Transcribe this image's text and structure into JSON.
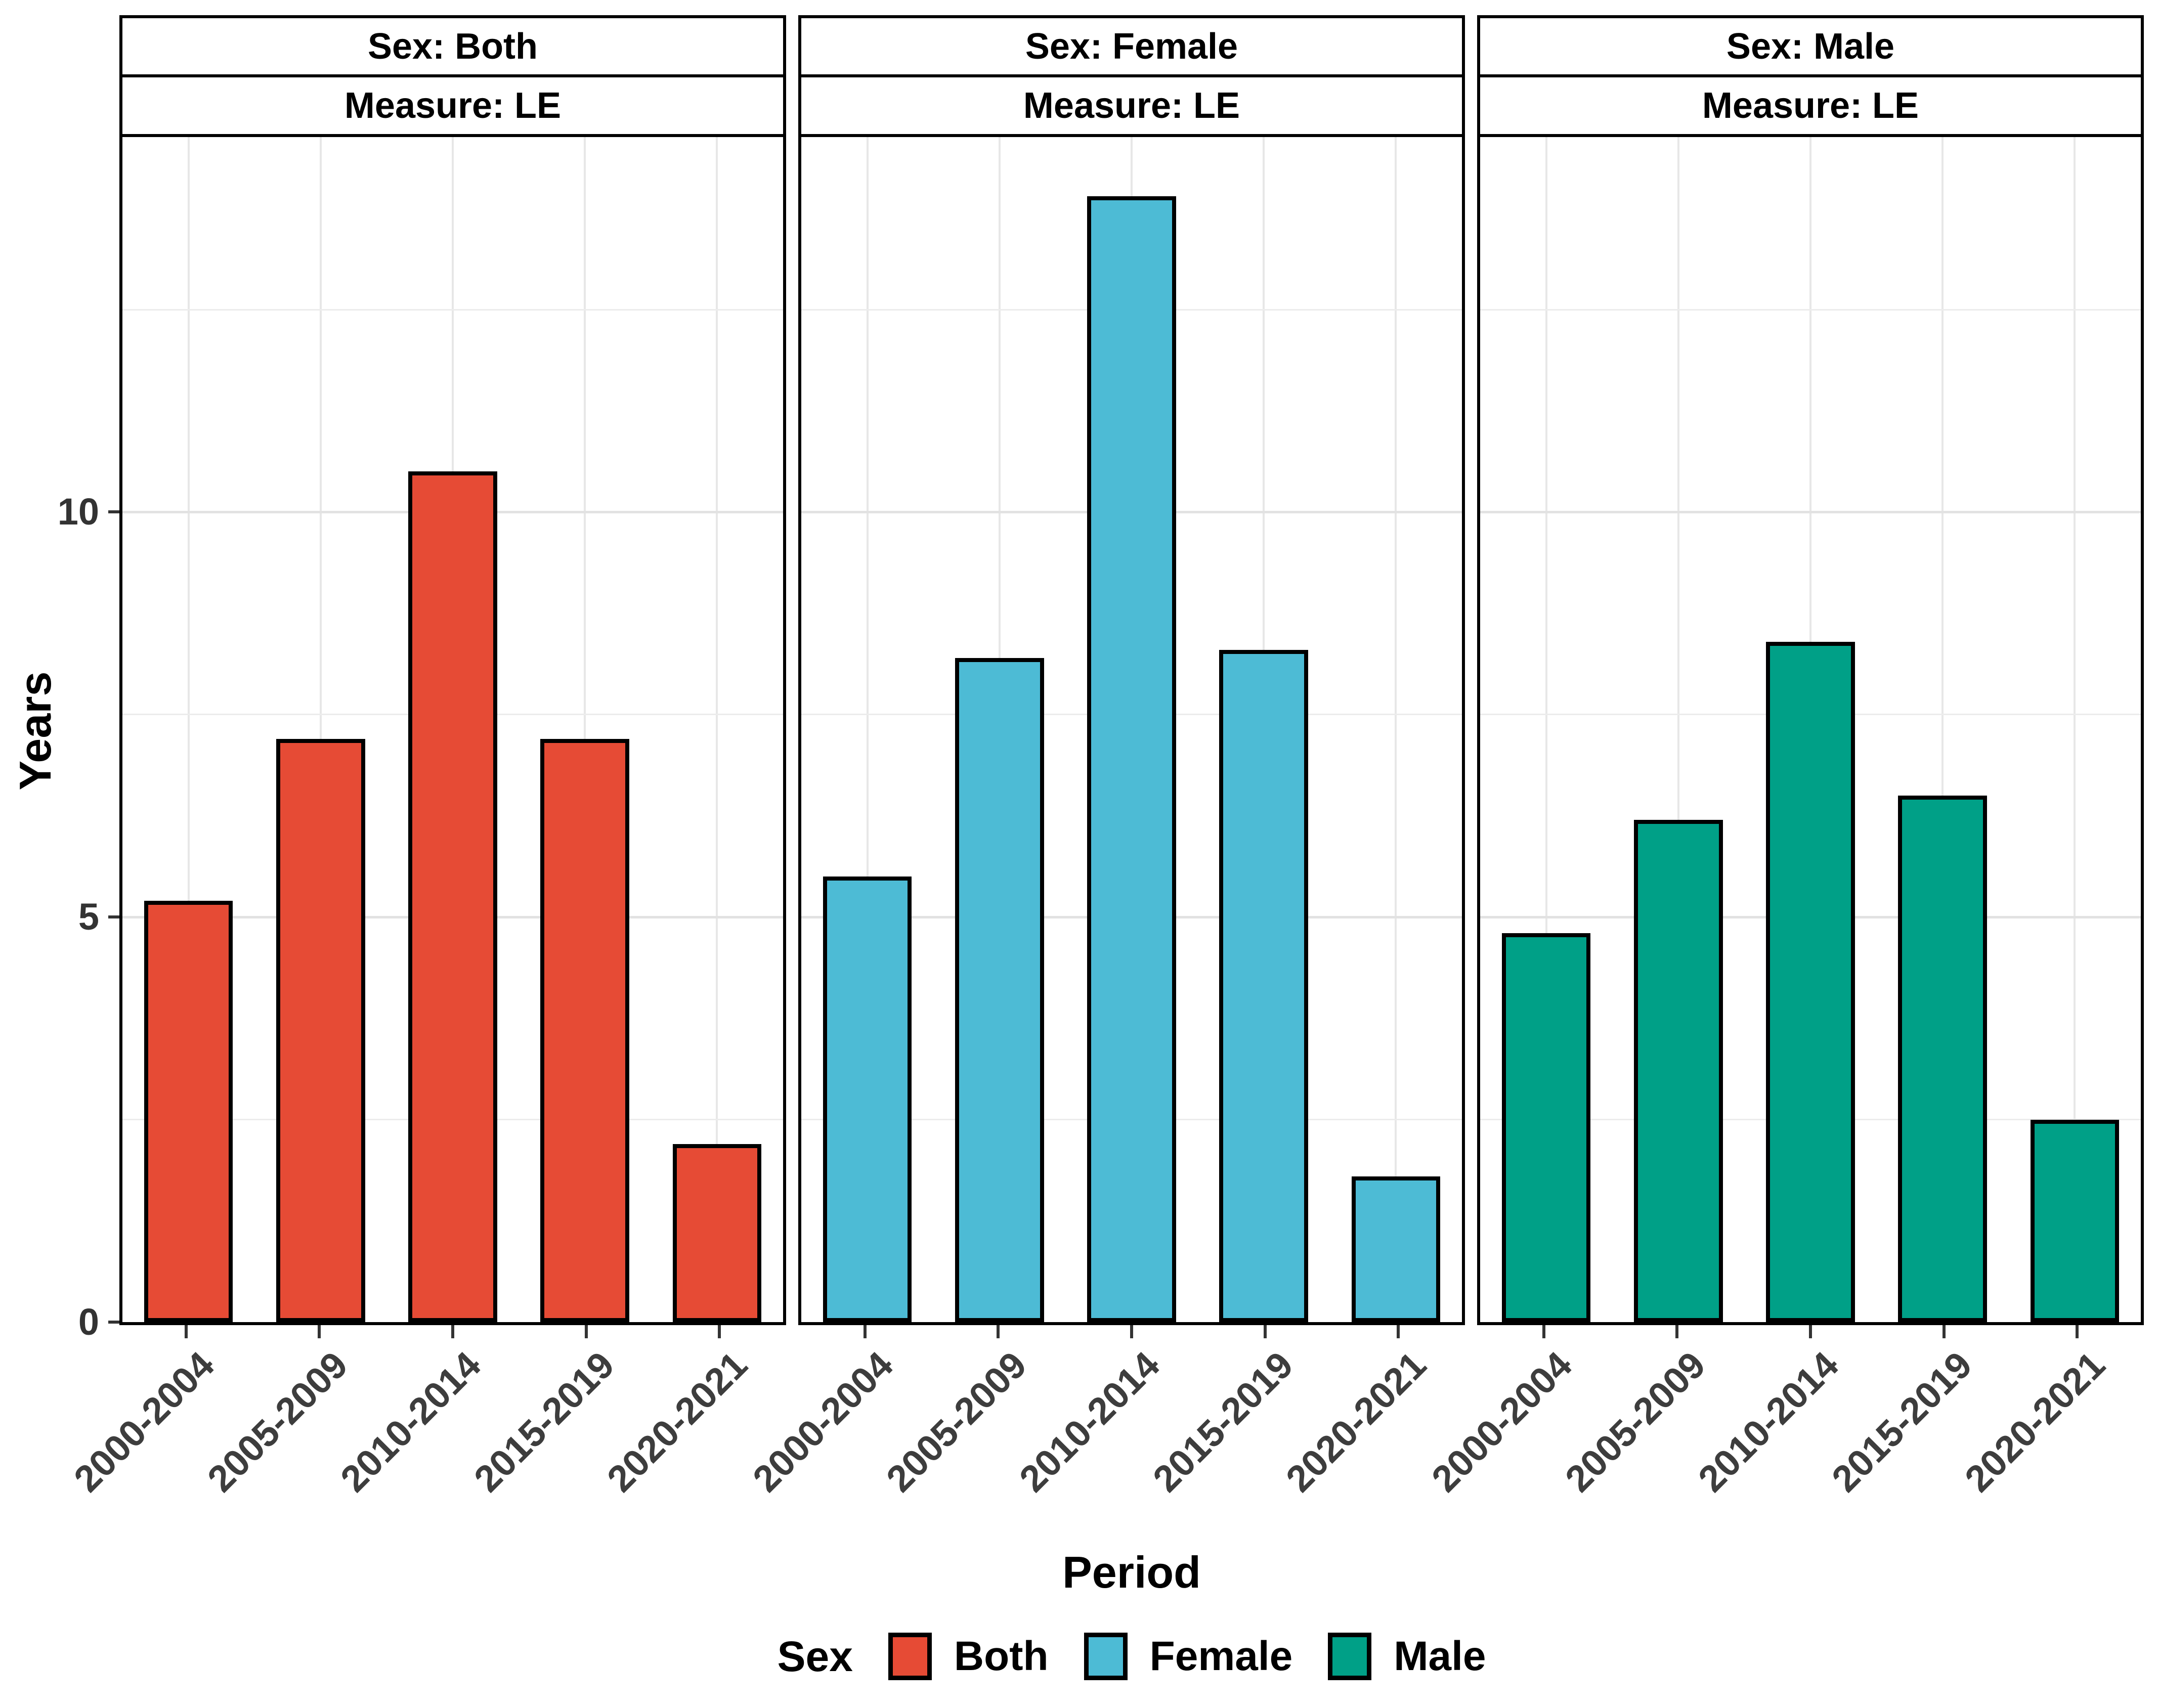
{
  "chart_data": {
    "type": "bar",
    "xlabel": "Period",
    "ylabel": "Years",
    "ylim": [
      0,
      14.63
    ],
    "y_ticks": [
      0,
      5,
      10
    ],
    "y_major_gridlines": [
      5,
      10
    ],
    "y_minor_gridlines": [
      2.5,
      7.5,
      12.5
    ],
    "grid": "on",
    "legend_position": "bottom",
    "categories": [
      "2000-2004",
      "2005-2009",
      "2010-2014",
      "2015-2019",
      "2020-2021"
    ],
    "facets": [
      {
        "strip_top": "Sex: Both",
        "strip_bottom": "Measure: LE",
        "series": "Both",
        "color": "#E64B35",
        "values": [
          5.2,
          7.2,
          10.5,
          7.2,
          2.2
        ]
      },
      {
        "strip_top": "Sex: Female",
        "strip_bottom": "Measure: LE",
        "series": "Female",
        "color": "#4DBBD5",
        "values": [
          5.5,
          8.2,
          13.9,
          8.3,
          1.8
        ]
      },
      {
        "strip_top": "Sex: Male",
        "strip_bottom": "Measure: LE",
        "series": "Male",
        "color": "#00A087",
        "values": [
          4.8,
          6.2,
          8.4,
          6.5,
          2.5
        ]
      }
    ],
    "legend": {
      "title": "Sex",
      "entries": [
        {
          "label": "Both",
          "color": "#E64B35"
        },
        {
          "label": "Female",
          "color": "#4DBBD5"
        },
        {
          "label": "Male",
          "color": "#00A087"
        }
      ]
    }
  }
}
